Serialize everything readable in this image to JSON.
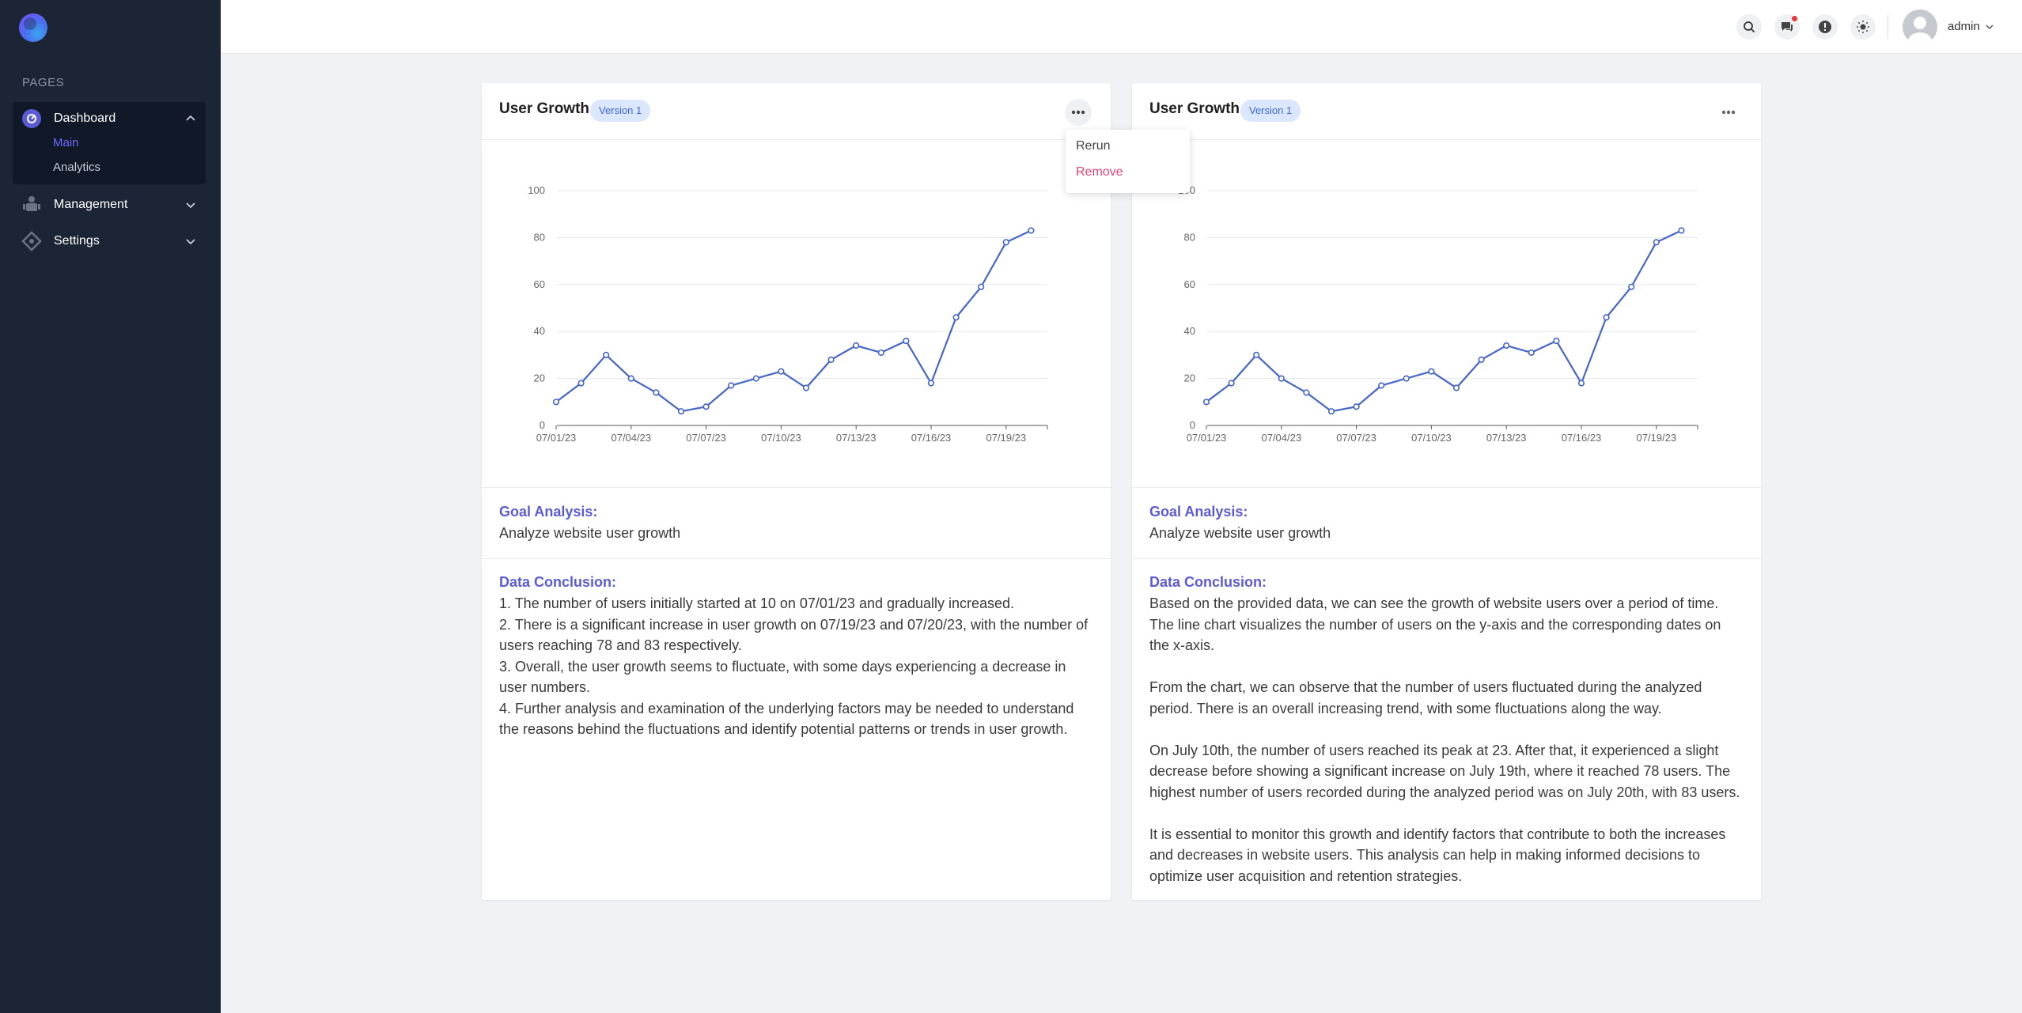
{
  "sidebar": {
    "section_label": "PAGES",
    "items": [
      {
        "label": "Dashboard",
        "icon": "dashboard-icon",
        "expanded": true,
        "children": [
          {
            "label": "Main",
            "active": true
          },
          {
            "label": "Analytics",
            "active": false
          }
        ]
      },
      {
        "label": "Management",
        "icon": "management-icon",
        "expanded": false
      },
      {
        "label": "Settings",
        "icon": "settings-icon",
        "expanded": false
      }
    ]
  },
  "header": {
    "icons": [
      "search-icon",
      "chat-icon",
      "alert-icon",
      "theme-sun-icon"
    ],
    "user_name": "admin"
  },
  "dropdown": {
    "items": [
      "Rerun",
      "Remove"
    ]
  },
  "colors": {
    "sidebar_bg": "#1c2536",
    "accent": "#5b5bd6",
    "line": "#4565c8",
    "remove": "#e0457b",
    "badge_bg": "#dbe6ff",
    "badge_text": "#3f67d6",
    "notification_dot": "#e53935"
  },
  "cards": [
    {
      "title": "User Growth",
      "badge": "Version 1",
      "goal_label": "Goal Analysis:",
      "goal_text": "Analyze website user growth",
      "conclusion_label": "Data Conclusion:",
      "conclusion_text": "1. The number of users initially started at 10 on 07/01/23 and gradually increased.\n2. There is a significant increase in user growth on 07/19/23 and 07/20/23, with the number of users reaching 78 and 83 respectively.\n3. Overall, the user growth seems to fluctuate, with some days experiencing a decrease in user numbers.\n4. Further analysis and examination of the underlying factors may be needed to understand the reasons behind the fluctuations and identify potential patterns or trends in user growth."
    },
    {
      "title": "User Growth",
      "badge": "Version 1",
      "goal_label": "Goal Analysis:",
      "goal_text": "Analyze website user growth",
      "conclusion_label": "Data Conclusion:",
      "conclusion_text": "Based on the provided data, we can see the growth of website users over a period of time. The line chart visualizes the number of users on the y-axis and the corresponding dates on the x-axis.\n\nFrom the chart, we can observe that the number of users fluctuated during the analyzed period. There is an overall increasing trend, with some fluctuations along the way.\n\nOn July 10th, the number of users reached its peak at 23. After that, it experienced a slight decrease before showing a significant increase on July 19th, where it reached 78 users. The highest number of users recorded during the analyzed period was on July 20th, with 83 users.\n\nIt is essential to monitor this growth and identify factors that contribute to both the increases and decreases in website users. This analysis can help in making informed decisions to optimize user acquisition and retention strategies."
    }
  ],
  "chart_data": {
    "type": "line",
    "x": [
      "07/01/23",
      "07/02/23",
      "07/03/23",
      "07/04/23",
      "07/05/23",
      "07/06/23",
      "07/07/23",
      "07/08/23",
      "07/09/23",
      "07/10/23",
      "07/11/23",
      "07/12/23",
      "07/13/23",
      "07/14/23",
      "07/15/23",
      "07/16/23",
      "07/17/23",
      "07/18/23",
      "07/19/23",
      "07/20/23"
    ],
    "values": [
      10,
      18,
      30,
      20,
      14,
      6,
      8,
      17,
      20,
      23,
      16,
      28,
      34,
      31,
      36,
      18,
      46,
      59,
      78,
      83
    ],
    "xticks": [
      "07/01/23",
      "07/04/23",
      "07/07/23",
      "07/10/23",
      "07/13/23",
      "07/16/23",
      "07/19/23"
    ],
    "yticks": [
      "0",
      "20",
      "40",
      "60",
      "80",
      "100"
    ],
    "ylim": [
      0,
      100
    ],
    "grid": true,
    "markers": "hollow-circles"
  }
}
